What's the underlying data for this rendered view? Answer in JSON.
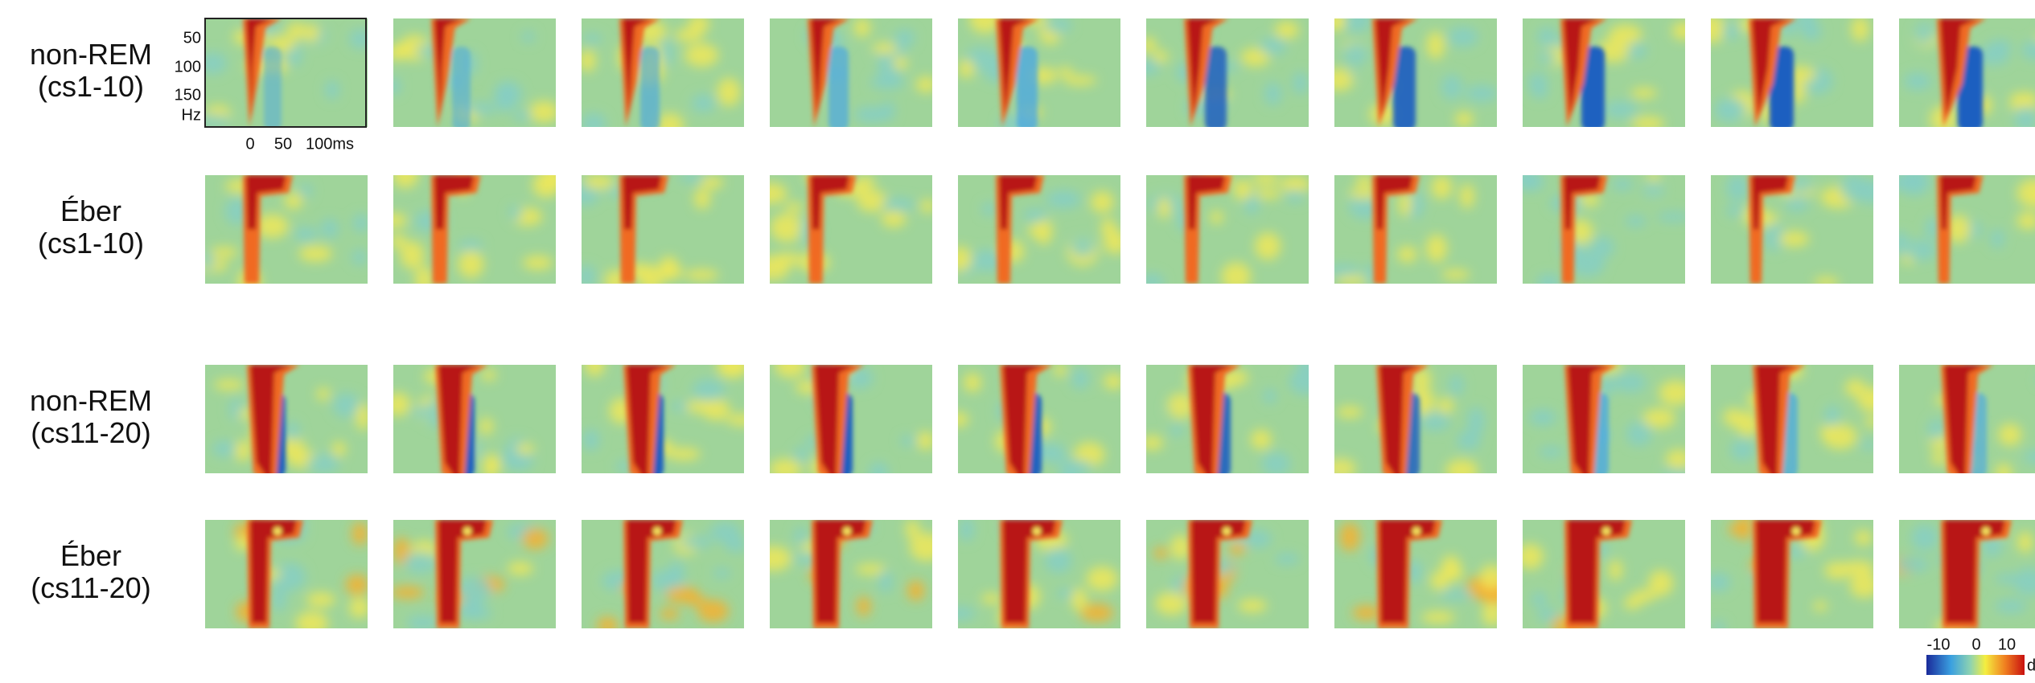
{
  "rows": [
    {
      "label": "non-REM",
      "sub": "(cs1-10)"
    },
    {
      "label": "Éber",
      "sub": "(cs1-10)"
    },
    {
      "label": "non-REM",
      "sub": "(cs11-20)"
    },
    {
      "label": "Éber",
      "sub": "(cs11-20)"
    }
  ],
  "axes": {
    "yticks": [
      50,
      100,
      150
    ],
    "yunit": "Hz",
    "xticks": [
      0,
      50,
      "100ms"
    ]
  },
  "colorbar": {
    "ticks": [
      -10,
      0,
      10
    ],
    "unit": "d"
  }
}
